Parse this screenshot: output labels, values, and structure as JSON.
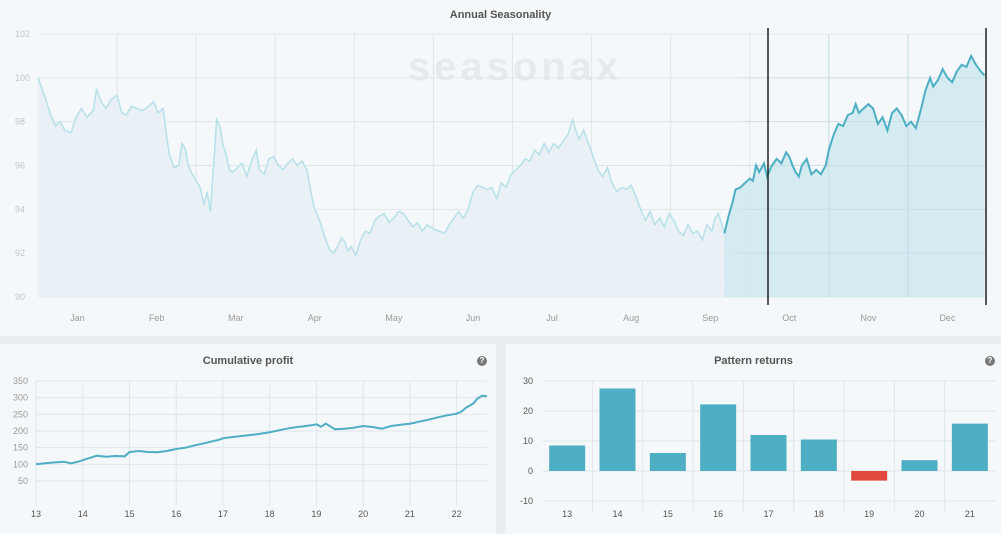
{
  "annual": {
    "title": "Annual Seasonality",
    "watermark": "seasonax",
    "chart_data": {
      "type": "area",
      "title": "Annual Seasonality",
      "ylim": [
        90,
        102
      ],
      "yticks": [
        90,
        92,
        94,
        96,
        98,
        100,
        102
      ],
      "months": [
        "Jan",
        "Feb",
        "Mar",
        "Apr",
        "May",
        "Jun",
        "Jul",
        "Aug",
        "Sep",
        "Oct",
        "Nov",
        "Dec"
      ],
      "highlight": {
        "from_month_index": 9,
        "to_month_index": 12
      },
      "series": [
        {
          "m": 0.0,
          "v": 100.0
        },
        {
          "m": 0.1,
          "v": 99.0
        },
        {
          "m": 0.16,
          "v": 98.3
        },
        {
          "m": 0.22,
          "v": 97.8
        },
        {
          "m": 0.28,
          "v": 98.0
        },
        {
          "m": 0.34,
          "v": 97.6
        },
        {
          "m": 0.42,
          "v": 97.5
        },
        {
          "m": 0.48,
          "v": 98.2
        },
        {
          "m": 0.55,
          "v": 98.6
        },
        {
          "m": 0.62,
          "v": 98.2
        },
        {
          "m": 0.7,
          "v": 98.5
        },
        {
          "m": 0.74,
          "v": 99.5
        },
        {
          "m": 0.8,
          "v": 98.9
        },
        {
          "m": 0.86,
          "v": 98.6
        },
        {
          "m": 0.92,
          "v": 99.0
        },
        {
          "m": 1.0,
          "v": 99.2
        },
        {
          "m": 1.06,
          "v": 98.4
        },
        {
          "m": 1.12,
          "v": 98.3
        },
        {
          "m": 1.18,
          "v": 98.7
        },
        {
          "m": 1.25,
          "v": 98.6
        },
        {
          "m": 1.32,
          "v": 98.5
        },
        {
          "m": 1.4,
          "v": 98.7
        },
        {
          "m": 1.46,
          "v": 98.9
        },
        {
          "m": 1.52,
          "v": 98.4
        },
        {
          "m": 1.58,
          "v": 98.6
        },
        {
          "m": 1.62,
          "v": 97.5
        },
        {
          "m": 1.66,
          "v": 96.5
        },
        {
          "m": 1.72,
          "v": 95.9
        },
        {
          "m": 1.78,
          "v": 96.0
        },
        {
          "m": 1.82,
          "v": 97.0
        },
        {
          "m": 1.86,
          "v": 96.8
        },
        {
          "m": 1.9,
          "v": 96.0
        },
        {
          "m": 1.95,
          "v": 95.6
        },
        {
          "m": 2.0,
          "v": 95.3
        },
        {
          "m": 2.05,
          "v": 95.0
        },
        {
          "m": 2.1,
          "v": 94.2
        },
        {
          "m": 2.14,
          "v": 94.8
        },
        {
          "m": 2.18,
          "v": 93.9
        },
        {
          "m": 2.22,
          "v": 96.0
        },
        {
          "m": 2.26,
          "v": 98.1
        },
        {
          "m": 2.3,
          "v": 97.8
        },
        {
          "m": 2.34,
          "v": 96.9
        },
        {
          "m": 2.38,
          "v": 96.5
        },
        {
          "m": 2.42,
          "v": 95.8
        },
        {
          "m": 2.46,
          "v": 95.7
        },
        {
          "m": 2.52,
          "v": 95.9
        },
        {
          "m": 2.58,
          "v": 96.1
        },
        {
          "m": 2.64,
          "v": 95.5
        },
        {
          "m": 2.7,
          "v": 96.2
        },
        {
          "m": 2.76,
          "v": 96.7
        },
        {
          "m": 2.8,
          "v": 95.8
        },
        {
          "m": 2.86,
          "v": 95.6
        },
        {
          "m": 2.92,
          "v": 96.3
        },
        {
          "m": 2.98,
          "v": 96.4
        },
        {
          "m": 3.04,
          "v": 96.0
        },
        {
          "m": 3.1,
          "v": 95.8
        },
        {
          "m": 3.16,
          "v": 96.1
        },
        {
          "m": 3.22,
          "v": 96.3
        },
        {
          "m": 3.28,
          "v": 96.0
        },
        {
          "m": 3.34,
          "v": 96.2
        },
        {
          "m": 3.4,
          "v": 95.8
        },
        {
          "m": 3.46,
          "v": 94.6
        },
        {
          "m": 3.5,
          "v": 94.0
        },
        {
          "m": 3.56,
          "v": 93.5
        },
        {
          "m": 3.62,
          "v": 92.8
        },
        {
          "m": 3.68,
          "v": 92.2
        },
        {
          "m": 3.74,
          "v": 92.0
        },
        {
          "m": 3.8,
          "v": 92.4
        },
        {
          "m": 3.84,
          "v": 92.7
        },
        {
          "m": 3.88,
          "v": 92.5
        },
        {
          "m": 3.92,
          "v": 92.1
        },
        {
          "m": 3.96,
          "v": 92.3
        },
        {
          "m": 4.02,
          "v": 91.9
        },
        {
          "m": 4.08,
          "v": 92.6
        },
        {
          "m": 4.14,
          "v": 93.0
        },
        {
          "m": 4.2,
          "v": 92.9
        },
        {
          "m": 4.26,
          "v": 93.5
        },
        {
          "m": 4.32,
          "v": 93.7
        },
        {
          "m": 4.38,
          "v": 93.8
        },
        {
          "m": 4.44,
          "v": 93.4
        },
        {
          "m": 4.5,
          "v": 93.6
        },
        {
          "m": 4.56,
          "v": 93.9
        },
        {
          "m": 4.62,
          "v": 93.8
        },
        {
          "m": 4.68,
          "v": 93.5
        },
        {
          "m": 4.74,
          "v": 93.2
        },
        {
          "m": 4.8,
          "v": 93.4
        },
        {
          "m": 4.86,
          "v": 93.0
        },
        {
          "m": 4.92,
          "v": 93.3
        },
        {
          "m": 5.0,
          "v": 93.1
        },
        {
          "m": 5.08,
          "v": 93.0
        },
        {
          "m": 5.14,
          "v": 92.9
        },
        {
          "m": 5.2,
          "v": 93.3
        },
        {
          "m": 5.26,
          "v": 93.6
        },
        {
          "m": 5.32,
          "v": 93.9
        },
        {
          "m": 5.38,
          "v": 93.6
        },
        {
          "m": 5.44,
          "v": 94.0
        },
        {
          "m": 5.5,
          "v": 94.8
        },
        {
          "m": 5.56,
          "v": 95.1
        },
        {
          "m": 5.62,
          "v": 95.0
        },
        {
          "m": 5.68,
          "v": 94.9
        },
        {
          "m": 5.74,
          "v": 95.0
        },
        {
          "m": 5.8,
          "v": 94.5
        },
        {
          "m": 5.86,
          "v": 95.2
        },
        {
          "m": 5.92,
          "v": 95.0
        },
        {
          "m": 5.98,
          "v": 95.6
        },
        {
          "m": 6.04,
          "v": 95.8
        },
        {
          "m": 6.1,
          "v": 96.0
        },
        {
          "m": 6.16,
          "v": 96.3
        },
        {
          "m": 6.22,
          "v": 96.2
        },
        {
          "m": 6.28,
          "v": 96.7
        },
        {
          "m": 6.34,
          "v": 96.5
        },
        {
          "m": 6.4,
          "v": 97.0
        },
        {
          "m": 6.46,
          "v": 96.6
        },
        {
          "m": 6.52,
          "v": 97.0
        },
        {
          "m": 6.58,
          "v": 96.8
        },
        {
          "m": 6.64,
          "v": 97.1
        },
        {
          "m": 6.7,
          "v": 97.4
        },
        {
          "m": 6.76,
          "v": 98.1
        },
        {
          "m": 6.8,
          "v": 97.6
        },
        {
          "m": 6.84,
          "v": 97.2
        },
        {
          "m": 6.9,
          "v": 97.6
        },
        {
          "m": 6.96,
          "v": 97.0
        },
        {
          "m": 7.02,
          "v": 96.4
        },
        {
          "m": 7.08,
          "v": 95.8
        },
        {
          "m": 7.14,
          "v": 95.5
        },
        {
          "m": 7.2,
          "v": 95.9
        },
        {
          "m": 7.26,
          "v": 95.2
        },
        {
          "m": 7.32,
          "v": 94.8
        },
        {
          "m": 7.38,
          "v": 95.0
        },
        {
          "m": 7.44,
          "v": 94.9
        },
        {
          "m": 7.5,
          "v": 95.1
        },
        {
          "m": 7.56,
          "v": 94.6
        },
        {
          "m": 7.62,
          "v": 94.0
        },
        {
          "m": 7.68,
          "v": 93.5
        },
        {
          "m": 7.74,
          "v": 93.9
        },
        {
          "m": 7.8,
          "v": 93.3
        },
        {
          "m": 7.86,
          "v": 93.6
        },
        {
          "m": 7.92,
          "v": 93.2
        },
        {
          "m": 7.98,
          "v": 93.8
        },
        {
          "m": 8.04,
          "v": 93.5
        },
        {
          "m": 8.1,
          "v": 93.0
        },
        {
          "m": 8.16,
          "v": 92.8
        },
        {
          "m": 8.22,
          "v": 93.3
        },
        {
          "m": 8.28,
          "v": 92.9
        },
        {
          "m": 8.34,
          "v": 93.0
        },
        {
          "m": 8.4,
          "v": 92.6
        },
        {
          "m": 8.46,
          "v": 93.3
        },
        {
          "m": 8.52,
          "v": 93.0
        },
        {
          "m": 8.56,
          "v": 93.6
        },
        {
          "m": 8.6,
          "v": 93.8
        },
        {
          "m": 8.64,
          "v": 93.4
        },
        {
          "m": 8.68,
          "v": 92.9
        }
      ],
      "highlight_series": [
        {
          "m": 8.68,
          "v": 92.9
        },
        {
          "m": 8.74,
          "v": 93.8
        },
        {
          "m": 8.78,
          "v": 94.3
        },
        {
          "m": 8.82,
          "v": 94.9
        },
        {
          "m": 8.88,
          "v": 95.0
        },
        {
          "m": 8.94,
          "v": 95.2
        },
        {
          "m": 9.0,
          "v": 95.4
        },
        {
          "m": 9.04,
          "v": 95.3
        },
        {
          "m": 9.08,
          "v": 96.0
        },
        {
          "m": 9.12,
          "v": 95.7
        },
        {
          "m": 9.18,
          "v": 96.1
        },
        {
          "m": 9.22,
          "v": 95.5
        },
        {
          "m": 9.28,
          "v": 96.0
        },
        {
          "m": 9.34,
          "v": 96.3
        },
        {
          "m": 9.4,
          "v": 96.1
        },
        {
          "m": 9.46,
          "v": 96.6
        },
        {
          "m": 9.5,
          "v": 96.4
        },
        {
          "m": 9.54,
          "v": 96.0
        },
        {
          "m": 9.58,
          "v": 95.7
        },
        {
          "m": 9.62,
          "v": 95.5
        },
        {
          "m": 9.66,
          "v": 96.0
        },
        {
          "m": 9.72,
          "v": 96.3
        },
        {
          "m": 9.78,
          "v": 95.6
        },
        {
          "m": 9.84,
          "v": 95.8
        },
        {
          "m": 9.9,
          "v": 95.6
        },
        {
          "m": 9.96,
          "v": 96.0
        },
        {
          "m": 10.0,
          "v": 96.7
        },
        {
          "m": 10.06,
          "v": 97.4
        },
        {
          "m": 10.12,
          "v": 97.9
        },
        {
          "m": 10.18,
          "v": 97.8
        },
        {
          "m": 10.24,
          "v": 98.3
        },
        {
          "m": 10.3,
          "v": 98.4
        },
        {
          "m": 10.34,
          "v": 98.8
        },
        {
          "m": 10.38,
          "v": 98.4
        },
        {
          "m": 10.44,
          "v": 98.6
        },
        {
          "m": 10.5,
          "v": 98.8
        },
        {
          "m": 10.56,
          "v": 98.6
        },
        {
          "m": 10.62,
          "v": 97.9
        },
        {
          "m": 10.68,
          "v": 98.2
        },
        {
          "m": 10.74,
          "v": 97.6
        },
        {
          "m": 10.8,
          "v": 98.4
        },
        {
          "m": 10.86,
          "v": 98.6
        },
        {
          "m": 10.92,
          "v": 98.3
        },
        {
          "m": 10.98,
          "v": 97.8
        },
        {
          "m": 11.04,
          "v": 98.0
        },
        {
          "m": 11.1,
          "v": 97.7
        },
        {
          "m": 11.16,
          "v": 98.5
        },
        {
          "m": 11.22,
          "v": 99.4
        },
        {
          "m": 11.28,
          "v": 100.0
        },
        {
          "m": 11.32,
          "v": 99.6
        },
        {
          "m": 11.38,
          "v": 99.9
        },
        {
          "m": 11.44,
          "v": 100.4
        },
        {
          "m": 11.5,
          "v": 100.0
        },
        {
          "m": 11.56,
          "v": 99.8
        },
        {
          "m": 11.62,
          "v": 100.3
        },
        {
          "m": 11.68,
          "v": 100.6
        },
        {
          "m": 11.74,
          "v": 100.5
        },
        {
          "m": 11.8,
          "v": 101.0
        },
        {
          "m": 11.86,
          "v": 100.6
        },
        {
          "m": 11.92,
          "v": 100.3
        },
        {
          "m": 11.97,
          "v": 100.1
        }
      ]
    }
  },
  "cumulative": {
    "title": "Cumulative profit",
    "help": "?",
    "chart_data": {
      "type": "line",
      "title": "Cumulative profit",
      "xlim": [
        13,
        22.65
      ],
      "ylim": [
        50,
        350
      ],
      "yticks": [
        50,
        100,
        150,
        200,
        250,
        300,
        350
      ],
      "xticks": [
        13,
        14,
        15,
        16,
        17,
        18,
        19,
        20,
        21,
        22
      ],
      "x": [
        13.0,
        13.3,
        13.6,
        13.75,
        13.9,
        14.1,
        14.3,
        14.5,
        14.7,
        14.9,
        15.0,
        15.2,
        15.4,
        15.6,
        15.8,
        15.9,
        16.0,
        16.2,
        16.4,
        16.6,
        16.8,
        16.9,
        17.0,
        17.2,
        17.4,
        17.6,
        17.8,
        18.0,
        18.2,
        18.4,
        18.6,
        18.9,
        19.0,
        19.1,
        19.2,
        19.4,
        19.6,
        19.8,
        20.0,
        20.2,
        20.4,
        20.6,
        20.8,
        21.0,
        21.2,
        21.4,
        21.6,
        21.8,
        22.0,
        22.1,
        22.2,
        22.35,
        22.45,
        22.55,
        22.65
      ],
      "y": [
        100,
        105,
        108,
        103,
        108,
        117,
        126,
        123,
        125,
        124,
        137,
        140,
        137,
        136,
        140,
        143,
        146,
        150,
        157,
        163,
        170,
        173,
        178,
        182,
        185,
        188,
        192,
        196,
        202,
        208,
        212,
        217,
        220,
        213,
        222,
        205,
        207,
        210,
        215,
        212,
        207,
        215,
        219,
        222,
        228,
        234,
        241,
        247,
        252,
        258,
        270,
        282,
        298,
        306,
        304
      ]
    }
  },
  "pattern": {
    "title": "Pattern returns",
    "help": "?",
    "chart_data": {
      "type": "bar",
      "title": "Pattern returns",
      "ylim": [
        -10,
        30
      ],
      "yticks": [
        -10,
        0,
        10,
        20,
        30
      ],
      "categories": [
        "13",
        "14",
        "15",
        "16",
        "17",
        "18",
        "19",
        "20",
        "21"
      ],
      "values": [
        8.5,
        27.5,
        6.0,
        22.2,
        12.0,
        10.5,
        -3.2,
        3.6,
        15.8
      ],
      "colors": {
        "positive": "#4eaec4",
        "negative": "#e2493e"
      }
    }
  },
  "colors": {
    "line": "#4eaec4",
    "line_faded": "#b9e1ea",
    "fill_faded": "#e9f1f6",
    "fill_highlight": "#cde9ef",
    "grid": "#dfe6ea",
    "tick_text": "#999999",
    "marker": "#222222"
  }
}
